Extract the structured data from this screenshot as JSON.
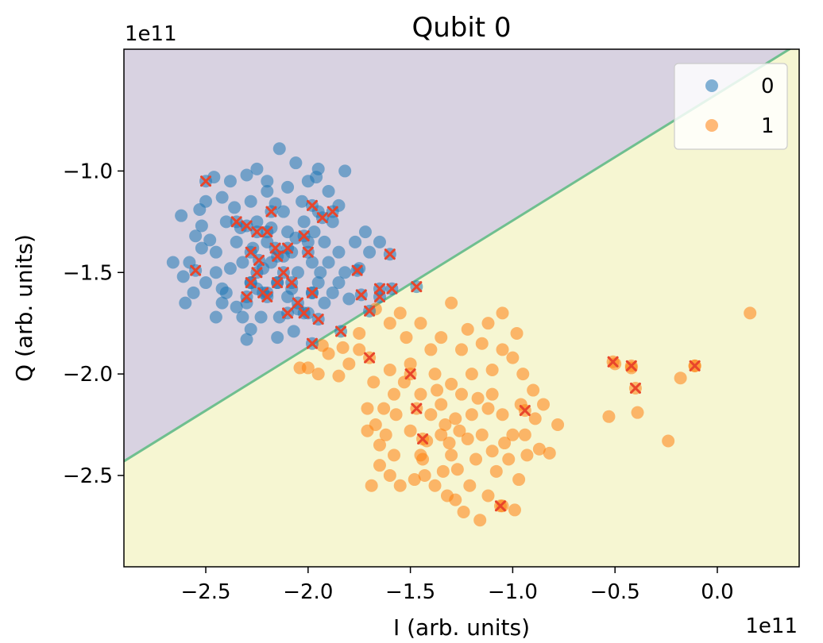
{
  "chart_data": {
    "type": "scatter",
    "title": "Qubit 0",
    "xlabel": "I (arb. units)",
    "ylabel": "Q (arb. units)",
    "x_offset_label": "1e11",
    "y_offset_label": "1e11",
    "xlim": [
      -2.9,
      0.4
    ],
    "ylim": [
      -2.95,
      -0.4
    ],
    "x_ticks": [
      -2.5,
      -2.0,
      -1.5,
      -1.0,
      -0.5,
      0.0
    ],
    "x_tick_labels": [
      "−2.5",
      "−2.0",
      "−1.5",
      "−1.0",
      "−0.5",
      "0.0"
    ],
    "y_ticks": [
      -1.0,
      -1.5,
      -2.0,
      -2.5
    ],
    "y_tick_labels": [
      "−1.0",
      "−1.5",
      "−2.0",
      "−2.5"
    ],
    "grid": false,
    "legend_position": "top-right",
    "decision_boundary": {
      "points": [
        [
          -2.9,
          -2.43
        ],
        [
          0.4,
          -0.37
        ]
      ],
      "region_upper_color": "#d8d2e1",
      "region_lower_color": "#f6f6d2",
      "boundary_color": "#6fbf8f",
      "upper_label": "0",
      "lower_label": "1"
    },
    "series": [
      {
        "name": "0",
        "color": "#1f77b4",
        "cluster_center": [
          -2.15,
          -1.38
        ],
        "points": [
          [
            -2.14,
            -0.89
          ],
          [
            -2.06,
            -0.96
          ],
          [
            -2.25,
            -0.99
          ],
          [
            -2.46,
            -1.03
          ],
          [
            -1.95,
            -0.99
          ],
          [
            -1.82,
            -1.0
          ],
          [
            -2.62,
            -1.22
          ],
          [
            -2.55,
            -1.32
          ],
          [
            -2.58,
            -1.45
          ],
          [
            -2.61,
            -1.52
          ],
          [
            -2.6,
            -1.65
          ],
          [
            -2.45,
            -1.72
          ],
          [
            -2.35,
            -1.67
          ],
          [
            -2.3,
            -1.83
          ],
          [
            -2.15,
            -1.82
          ],
          [
            -2.07,
            -1.79
          ],
          [
            -2.0,
            -1.7
          ],
          [
            -1.92,
            -1.65
          ],
          [
            -1.8,
            -1.63
          ],
          [
            -1.77,
            -1.35
          ],
          [
            -1.75,
            -1.48
          ],
          [
            -1.72,
            -1.3
          ],
          [
            -1.65,
            -1.35
          ],
          [
            -1.7,
            -1.4
          ],
          [
            -1.9,
            -1.1
          ],
          [
            -1.88,
            -1.25
          ],
          [
            -2.5,
            -1.15
          ],
          [
            -2.52,
            -1.27
          ],
          [
            -2.42,
            -1.13
          ],
          [
            -2.38,
            -1.05
          ],
          [
            -2.3,
            -1.02
          ],
          [
            -2.2,
            -1.1
          ],
          [
            -2.1,
            -1.08
          ],
          [
            -2.0,
            -1.05
          ],
          [
            -1.95,
            -1.2
          ],
          [
            -1.85,
            -1.17
          ],
          [
            -2.4,
            -1.25
          ],
          [
            -2.35,
            -1.35
          ],
          [
            -2.32,
            -1.45
          ],
          [
            -2.28,
            -1.55
          ],
          [
            -2.25,
            -1.25
          ],
          [
            -2.2,
            -1.35
          ],
          [
            -2.18,
            -1.45
          ],
          [
            -2.15,
            -1.55
          ],
          [
            -2.12,
            -1.2
          ],
          [
            -2.1,
            -1.3
          ],
          [
            -2.08,
            -1.4
          ],
          [
            -2.05,
            -1.5
          ],
          [
            -2.02,
            -1.25
          ],
          [
            -2.0,
            -1.35
          ],
          [
            -1.98,
            -1.45
          ],
          [
            -1.95,
            -1.55
          ],
          [
            -1.92,
            -1.35
          ],
          [
            -1.9,
            -1.45
          ],
          [
            -2.45,
            -1.4
          ],
          [
            -2.45,
            -1.5
          ],
          [
            -2.4,
            -1.6
          ],
          [
            -2.3,
            -1.65
          ],
          [
            -2.2,
            -1.6
          ],
          [
            -2.1,
            -1.62
          ],
          [
            -2.05,
            -1.68
          ],
          [
            -1.98,
            -1.6
          ],
          [
            -1.85,
            -1.55
          ],
          [
            -1.85,
            -1.4
          ],
          [
            -2.28,
            -1.15
          ],
          [
            -2.16,
            -1.16
          ],
          [
            -2.36,
            -1.18
          ],
          [
            -2.52,
            -1.38
          ],
          [
            -2.5,
            -1.55
          ],
          [
            -1.82,
            -1.5
          ],
          [
            -2.23,
            -1.72
          ],
          [
            -2.14,
            -1.72
          ],
          [
            -2.27,
            -1.38
          ],
          [
            -2.18,
            -1.28
          ],
          [
            -2.06,
            -1.33
          ],
          [
            -2.12,
            -1.42
          ],
          [
            -2.22,
            -1.48
          ],
          [
            -1.97,
            -1.3
          ],
          [
            -2.33,
            -1.28
          ],
          [
            -2.38,
            -1.48
          ],
          [
            -2.42,
            -1.58
          ],
          [
            -2.25,
            -1.58
          ],
          [
            -2.08,
            -1.58
          ],
          [
            -1.94,
            -1.5
          ],
          [
            -2.56,
            -1.6
          ],
          [
            -2.66,
            -1.45
          ],
          [
            -2.53,
            -1.19
          ],
          [
            -2.48,
            -1.34
          ],
          [
            -2.42,
            -1.65
          ],
          [
            -2.2,
            -1.05
          ],
          [
            -1.88,
            -1.6
          ],
          [
            -1.96,
            -1.03
          ],
          [
            -2.03,
            -1.15
          ],
          [
            -2.32,
            -1.72
          ],
          [
            -2.28,
            -1.78
          ]
        ],
        "misclassified": [
          [
            -2.5,
            -1.05
          ],
          [
            -2.55,
            -1.49
          ],
          [
            -2.35,
            -1.25
          ],
          [
            -2.3,
            -1.27
          ],
          [
            -2.28,
            -1.4
          ],
          [
            -2.25,
            -1.5
          ],
          [
            -2.22,
            -1.6
          ],
          [
            -2.2,
            -1.3
          ],
          [
            -2.18,
            -1.2
          ],
          [
            -2.15,
            -1.42
          ],
          [
            -2.12,
            -1.5
          ],
          [
            -2.1,
            -1.38
          ],
          [
            -2.08,
            -1.55
          ],
          [
            -2.05,
            -1.65
          ],
          [
            -2.02,
            -1.7
          ],
          [
            -2.0,
            -1.4
          ],
          [
            -1.98,
            -1.6
          ],
          [
            -1.95,
            -1.73
          ],
          [
            -2.28,
            -1.55
          ],
          [
            -2.25,
            -1.3
          ],
          [
            -2.2,
            -1.62
          ],
          [
            -2.15,
            -1.55
          ],
          [
            -2.1,
            -1.7
          ],
          [
            -2.3,
            -1.62
          ],
          [
            -1.98,
            -1.85
          ],
          [
            -1.98,
            -1.17
          ],
          [
            -1.93,
            -1.23
          ],
          [
            -1.88,
            -1.2
          ],
          [
            -1.76,
            -1.49
          ],
          [
            -1.74,
            -1.61
          ],
          [
            -1.7,
            -1.69
          ],
          [
            -1.65,
            -1.62
          ],
          [
            -1.65,
            -1.58
          ],
          [
            -1.59,
            -1.58
          ],
          [
            -1.6,
            -1.41
          ],
          [
            -1.47,
            -1.57
          ],
          [
            -1.84,
            -1.79
          ],
          [
            -2.02,
            -1.32
          ],
          [
            -2.16,
            -1.38
          ],
          [
            -2.24,
            -1.44
          ]
        ]
      },
      {
        "name": "1",
        "color": "#ff7f0e",
        "cluster_center": [
          -1.28,
          -2.22
        ],
        "points": [
          [
            -1.3,
            -1.65
          ],
          [
            -1.12,
            -1.75
          ],
          [
            -1.05,
            -1.7
          ],
          [
            -0.98,
            -1.8
          ],
          [
            -1.45,
            -1.75
          ],
          [
            -1.52,
            -1.82
          ],
          [
            -1.55,
            -1.7
          ],
          [
            -1.6,
            -1.75
          ],
          [
            -1.67,
            -1.68
          ],
          [
            -1.75,
            -1.8
          ],
          [
            -1.83,
            -1.87
          ],
          [
            -1.9,
            -1.9
          ],
          [
            -1.93,
            -1.86
          ],
          [
            -1.8,
            -1.95
          ],
          [
            -1.75,
            -1.88
          ],
          [
            -2.0,
            -1.97
          ],
          [
            -1.95,
            -2.0
          ],
          [
            -1.85,
            -2.01
          ],
          [
            -1.68,
            -2.04
          ],
          [
            -1.6,
            -1.98
          ],
          [
            -1.53,
            -2.04
          ],
          [
            -1.58,
            -2.1
          ],
          [
            -1.63,
            -2.17
          ],
          [
            -1.71,
            -2.17
          ],
          [
            -1.67,
            -2.25
          ],
          [
            -1.71,
            -2.28
          ],
          [
            -1.65,
            -2.35
          ],
          [
            -1.58,
            -2.4
          ],
          [
            -1.65,
            -2.45
          ],
          [
            -1.69,
            -2.55
          ],
          [
            -1.6,
            -2.5
          ],
          [
            -1.55,
            -2.55
          ],
          [
            -1.48,
            -2.52
          ],
          [
            -1.43,
            -2.5
          ],
          [
            -1.38,
            -2.55
          ],
          [
            -1.32,
            -2.6
          ],
          [
            -1.28,
            -2.62
          ],
          [
            -1.21,
            -2.55
          ],
          [
            -1.12,
            -2.6
          ],
          [
            -1.05,
            -2.65
          ],
          [
            -0.99,
            -2.67
          ],
          [
            -0.97,
            -2.52
          ],
          [
            -1.08,
            -2.48
          ],
          [
            -0.93,
            -2.4
          ],
          [
            -0.87,
            -2.37
          ],
          [
            -0.94,
            -2.3
          ],
          [
            -0.89,
            -2.22
          ],
          [
            -0.85,
            -2.15
          ],
          [
            -0.9,
            -2.08
          ],
          [
            -0.95,
            -2.0
          ],
          [
            -1.0,
            -1.92
          ],
          [
            -1.05,
            -1.88
          ],
          [
            -1.15,
            -1.85
          ],
          [
            -1.25,
            -1.88
          ],
          [
            -1.35,
            -1.82
          ],
          [
            -1.4,
            -1.88
          ],
          [
            -1.5,
            -1.95
          ],
          [
            -1.45,
            -2.1
          ],
          [
            -1.4,
            -2.2
          ],
          [
            -1.35,
            -2.3
          ],
          [
            -1.3,
            -2.4
          ],
          [
            -1.25,
            -2.1
          ],
          [
            -1.2,
            -2.2
          ],
          [
            -1.15,
            -2.3
          ],
          [
            -1.1,
            -2.1
          ],
          [
            -1.05,
            -2.2
          ],
          [
            -1.0,
            -2.3
          ],
          [
            -1.3,
            -2.05
          ],
          [
            -1.2,
            -2.0
          ],
          [
            -1.1,
            -1.98
          ],
          [
            -1.38,
            -2.0
          ],
          [
            -1.5,
            -2.28
          ],
          [
            -1.45,
            -2.4
          ],
          [
            -1.28,
            -2.22
          ],
          [
            -1.22,
            -2.32
          ],
          [
            -1.18,
            -2.42
          ],
          [
            -1.1,
            -2.38
          ],
          [
            -1.35,
            -2.15
          ],
          [
            -1.27,
            -2.47
          ],
          [
            -1.02,
            -2.42
          ],
          [
            -0.96,
            -2.15
          ],
          [
            -1.17,
            -2.12
          ],
          [
            -1.42,
            -2.33
          ],
          [
            -1.57,
            -2.2
          ],
          [
            -1.22,
            -1.78
          ],
          [
            -0.78,
            -2.25
          ],
          [
            -0.82,
            -2.39
          ],
          [
            -1.16,
            -2.72
          ],
          [
            -1.24,
            -2.68
          ],
          [
            -1.44,
            -2.42
          ],
          [
            -1.34,
            -2.48
          ],
          [
            -0.5,
            -1.95
          ],
          [
            -0.42,
            -1.97
          ],
          [
            -0.39,
            -2.19
          ],
          [
            -0.53,
            -2.21
          ],
          [
            -0.24,
            -2.33
          ],
          [
            -0.18,
            -2.02
          ],
          [
            -0.11,
            -1.96
          ],
          [
            0.16,
            -1.7
          ],
          [
            -2.04,
            -1.97
          ],
          [
            -1.62,
            -2.3
          ],
          [
            -1.37,
            -2.08
          ],
          [
            -1.12,
            -2.17
          ],
          [
            -1.04,
            -2.34
          ],
          [
            -1.31,
            -2.34
          ],
          [
            -1.26,
            -2.28
          ],
          [
            -1.33,
            -2.25
          ]
        ],
        "misclassified": [
          [
            -1.7,
            -1.92
          ],
          [
            -1.5,
            -2.0
          ],
          [
            -1.47,
            -2.17
          ],
          [
            -1.44,
            -2.32
          ],
          [
            -0.94,
            -2.18
          ],
          [
            -1.06,
            -2.65
          ],
          [
            -0.51,
            -1.94
          ],
          [
            -0.42,
            -1.96
          ],
          [
            -0.4,
            -2.07
          ],
          [
            -0.11,
            -1.96
          ]
        ]
      }
    ]
  }
}
